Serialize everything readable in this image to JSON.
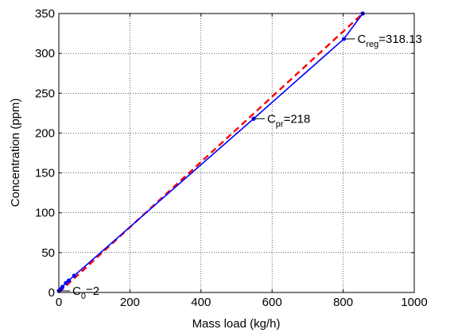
{
  "chart_data": {
    "type": "line",
    "xlabel": "Mass load (kg/h)",
    "ylabel": "Concentration (ppm)",
    "xlim": [
      0,
      1000
    ],
    "ylim": [
      0,
      350
    ],
    "xticks": [
      0,
      200,
      400,
      600,
      800,
      1000
    ],
    "yticks": [
      0,
      50,
      100,
      150,
      200,
      250,
      300,
      350
    ],
    "xtick_labels": [
      "0",
      "200",
      "400",
      "600",
      "800",
      "1000"
    ],
    "ytick_labels": [
      "0",
      "50",
      "100",
      "150",
      "200",
      "250",
      "300",
      "350"
    ],
    "grid": true,
    "grid_style": "dotted",
    "series": [
      {
        "style": "red dashed line",
        "color": "#ff0000",
        "x": [
          0,
          855
        ],
        "y": [
          0,
          350
        ]
      },
      {
        "style": "blue solid line with point markers",
        "color": "#0000ff",
        "x": [
          0,
          5,
          10,
          20,
          28,
          43,
          548,
          802,
          855
        ],
        "y": [
          2,
          4,
          7,
          12,
          15,
          21,
          218,
          318.13,
          350
        ]
      }
    ],
    "annotations": [
      {
        "base": "C",
        "sub": "0",
        "value": "=2",
        "x": 0,
        "y": 2
      },
      {
        "base": "C",
        "sub": "pr",
        "value": "=218",
        "x": 548,
        "y": 218
      },
      {
        "base": "C",
        "sub": "reg",
        "value": "=318.13",
        "x": 802,
        "y": 318.13
      }
    ]
  }
}
